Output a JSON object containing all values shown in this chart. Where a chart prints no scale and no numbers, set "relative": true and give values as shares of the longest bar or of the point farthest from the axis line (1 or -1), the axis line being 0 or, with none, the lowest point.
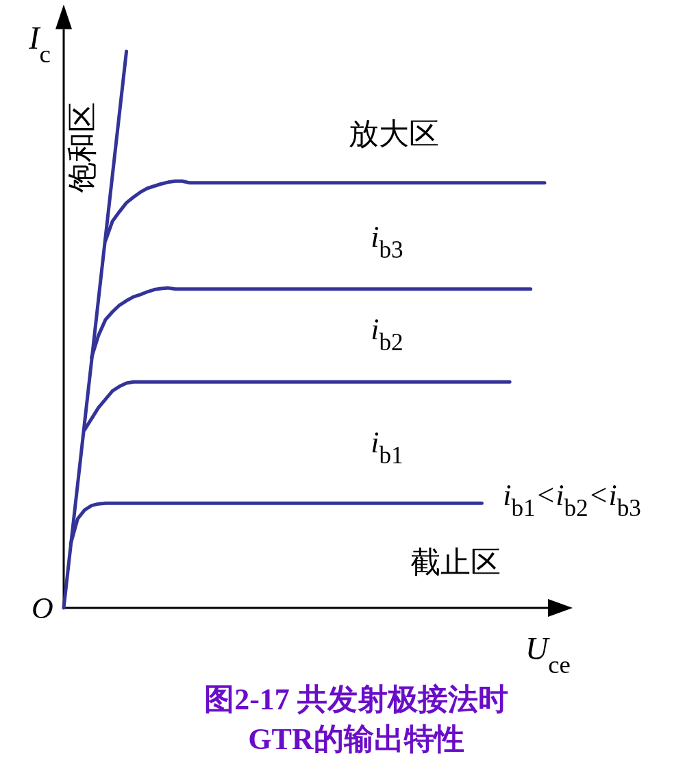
{
  "chart_data": {
    "type": "line",
    "relative": true,
    "title": "图2-17 共发射极接法时\nGTR的输出特性",
    "xlabel": "U$_{ce}$",
    "ylabel": "I$_{c}$",
    "categories": [
      null,
      null,
      null,
      null,
      null,
      null,
      null,
      null,
      null,
      null,
      null,
      null,
      null,
      null,
      null,
      null,
      null,
      null,
      null,
      null,
      null,
      null,
      null,
      null,
      null,
      null,
      null,
      null,
      null,
      null,
      null,
      null,
      null,
      null,
      null,
      null,
      null,
      null,
      null,
      null,
      null,
      null,
      null,
      null,
      null,
      null,
      null,
      null,
      null,
      null,
      null,
      null,
      null,
      null,
      null,
      null,
      null,
      null,
      null,
      null,
      null,
      null,
      null,
      null,
      null,
      null,
      null,
      null,
      null,
      null
    ],
    "series": [
      {
        "color": "#333399",
        "values": [
          0,
          0.111,
          0.222,
          0.333,
          0.444,
          0.556,
          0.667,
          0.778,
          0.889,
          1,
          null,
          null,
          null,
          null,
          null,
          null,
          null,
          null,
          null,
          null,
          null,
          null,
          null,
          null,
          null,
          null,
          null,
          null,
          null,
          null,
          null,
          null,
          null,
          null,
          null,
          null,
          null,
          null,
          null,
          null,
          null,
          null,
          null,
          null,
          null,
          null,
          null,
          null,
          null,
          null,
          null,
          null,
          null,
          null,
          null,
          null,
          null,
          null,
          null,
          null,
          null,
          null,
          null,
          null,
          null,
          null,
          null,
          null,
          null,
          null
        ]
      },
      {
        "color": "#333399",
        "values": [
          null,
          null,
          null,
          null,
          null,
          null,
          0.66,
          0.695,
          0.712,
          0.728,
          0.738,
          0.747,
          0.754,
          0.758,
          0.762,
          0.765,
          0.767,
          0.767,
          0.764,
          0.764,
          0.764,
          0.764,
          0.764,
          0.764,
          0.764,
          0.764,
          0.764,
          0.764,
          0.764,
          0.764,
          0.764,
          0.764,
          0.764,
          0.764,
          0.764,
          0.764,
          0.764,
          0.764,
          0.764,
          0.764,
          0.764,
          0.764,
          0.764,
          0.764,
          0.764,
          0.764,
          0.764,
          0.764,
          0.764,
          0.764,
          0.764,
          0.764,
          0.764,
          0.764,
          0.764,
          0.764,
          0.764,
          0.764,
          0.764,
          0.764,
          0.764,
          0.764,
          0.764,
          0.764,
          0.764,
          0.764,
          0.764,
          0.764,
          0.764,
          0.764
        ]
      },
      {
        "color": "#333399",
        "values": [
          null,
          null,
          null,
          null,
          0.45,
          0.49,
          0.518,
          0.532,
          0.544,
          0.552,
          0.559,
          0.563,
          0.568,
          0.572,
          0.574,
          0.575,
          0.573,
          0.573,
          0.573,
          0.573,
          0.573,
          0.573,
          0.573,
          0.573,
          0.573,
          0.573,
          0.573,
          0.573,
          0.573,
          0.573,
          0.573,
          0.573,
          0.573,
          0.573,
          0.573,
          0.573,
          0.573,
          0.573,
          0.573,
          0.573,
          0.573,
          0.573,
          0.573,
          0.573,
          0.573,
          0.573,
          0.573,
          0.573,
          0.573,
          0.573,
          0.573,
          0.573,
          0.573,
          0.573,
          0.573,
          0.573,
          0.573,
          0.573,
          0.573,
          0.573,
          0.573,
          0.573,
          0.573,
          0.573,
          0.573,
          0.573,
          0.573,
          0.573,
          null,
          null
        ]
      },
      {
        "color": "#333399",
        "values": [
          null,
          null,
          null,
          0.32,
          0.34,
          0.36,
          0.375,
          0.39,
          0.398,
          0.404,
          0.406,
          0.406,
          0.406,
          0.406,
          0.406,
          0.406,
          0.406,
          0.406,
          0.406,
          0.406,
          0.406,
          0.406,
          0.406,
          0.406,
          0.406,
          0.406,
          0.406,
          0.406,
          0.406,
          0.406,
          0.406,
          0.406,
          0.406,
          0.406,
          0.406,
          0.406,
          0.406,
          0.406,
          0.406,
          0.406,
          0.406,
          0.406,
          0.406,
          0.406,
          0.406,
          0.406,
          0.406,
          0.406,
          0.406,
          0.406,
          0.406,
          0.406,
          0.406,
          0.406,
          0.406,
          0.406,
          0.406,
          0.406,
          0.406,
          0.406,
          0.406,
          0.406,
          0.406,
          0.406,
          0.406,
          null,
          null,
          null,
          null,
          null
        ]
      },
      {
        "color": "#333399",
        "values": [
          null,
          0.115,
          0.16,
          0.176,
          0.184,
          0.187,
          0.188,
          0.188,
          0.188,
          0.188,
          0.188,
          0.188,
          0.188,
          0.188,
          0.188,
          0.188,
          0.188,
          0.188,
          0.188,
          0.188,
          0.188,
          0.188,
          0.188,
          0.188,
          0.188,
          0.188,
          0.188,
          0.188,
          0.188,
          0.188,
          0.188,
          0.188,
          0.188,
          0.188,
          0.188,
          0.188,
          0.188,
          0.188,
          0.188,
          0.188,
          0.188,
          0.188,
          0.188,
          0.188,
          0.188,
          0.188,
          0.188,
          0.188,
          0.188,
          0.188,
          0.188,
          0.188,
          0.188,
          0.188,
          0.188,
          0.188,
          0.188,
          0.188,
          0.188,
          0.188,
          0.188,
          null,
          null,
          null,
          null,
          null,
          null,
          null,
          null,
          null
        ]
      }
    ],
    "annotations": [
      "饱和区",
      "放大区",
      "i$_{b3}$",
      "i$_{b2}$",
      "i$_{b1}$",
      "i$_{b1}$<i$_{b2}$<i$_{b3}$",
      "截止区",
      "O"
    ]
  }
}
